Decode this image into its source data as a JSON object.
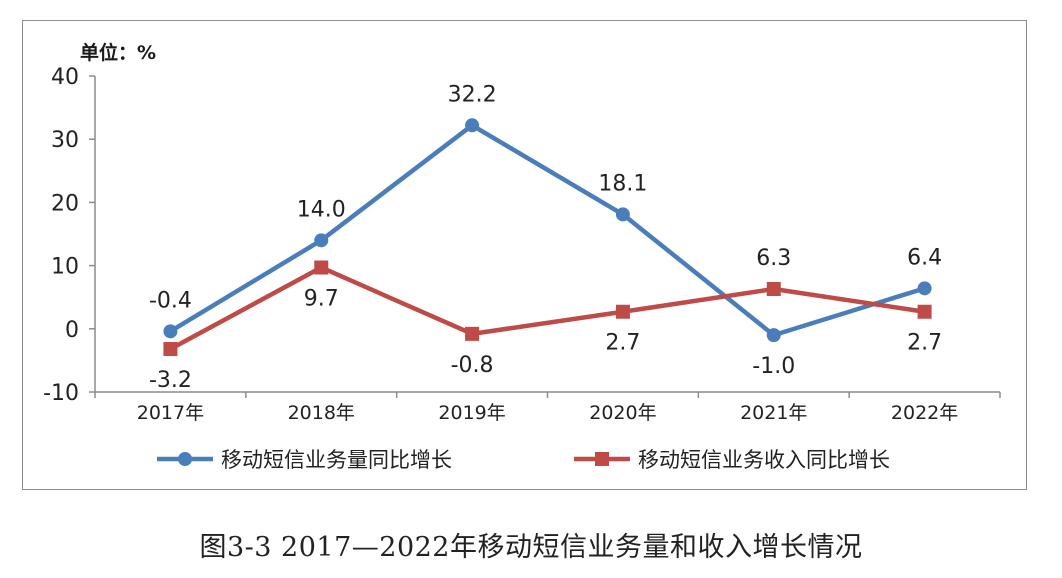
{
  "unit_label": "单位：%",
  "caption": "图3-3   2017—2022年移动短信业务量和收入增长情况",
  "chart_data": {
    "type": "line",
    "title": "",
    "categories": [
      "2017年",
      "2018年",
      "2019年",
      "2020年",
      "2021年",
      "2022年"
    ],
    "y_ticks": [
      "40",
      "30",
      "20",
      "10",
      "0",
      "-10"
    ],
    "ylim": [
      -10,
      40
    ],
    "grid": false,
    "legend_position": "bottom",
    "series": [
      {
        "name": "移动短信业务量同比增长",
        "color": "#4a7ebb",
        "marker": "circle",
        "values": [
          -0.4,
          14.0,
          32.2,
          18.1,
          -1.0,
          6.4
        ],
        "labels": [
          "-0.4",
          "14.0",
          "32.2",
          "18.1",
          "-1.0",
          "6.4"
        ],
        "label_position": [
          "above",
          "above",
          "above",
          "above",
          "below",
          "above"
        ]
      },
      {
        "name": "移动短信业务收入同比增长",
        "color": "#be4b48",
        "marker": "square",
        "values": [
          -3.2,
          9.7,
          -0.8,
          2.7,
          6.3,
          2.7
        ],
        "labels": [
          "-3.2",
          "9.7",
          "-0.8",
          "2.7",
          "6.3",
          "2.7"
        ],
        "label_position": [
          "below",
          "below",
          "below",
          "below",
          "above",
          "below"
        ]
      }
    ]
  }
}
